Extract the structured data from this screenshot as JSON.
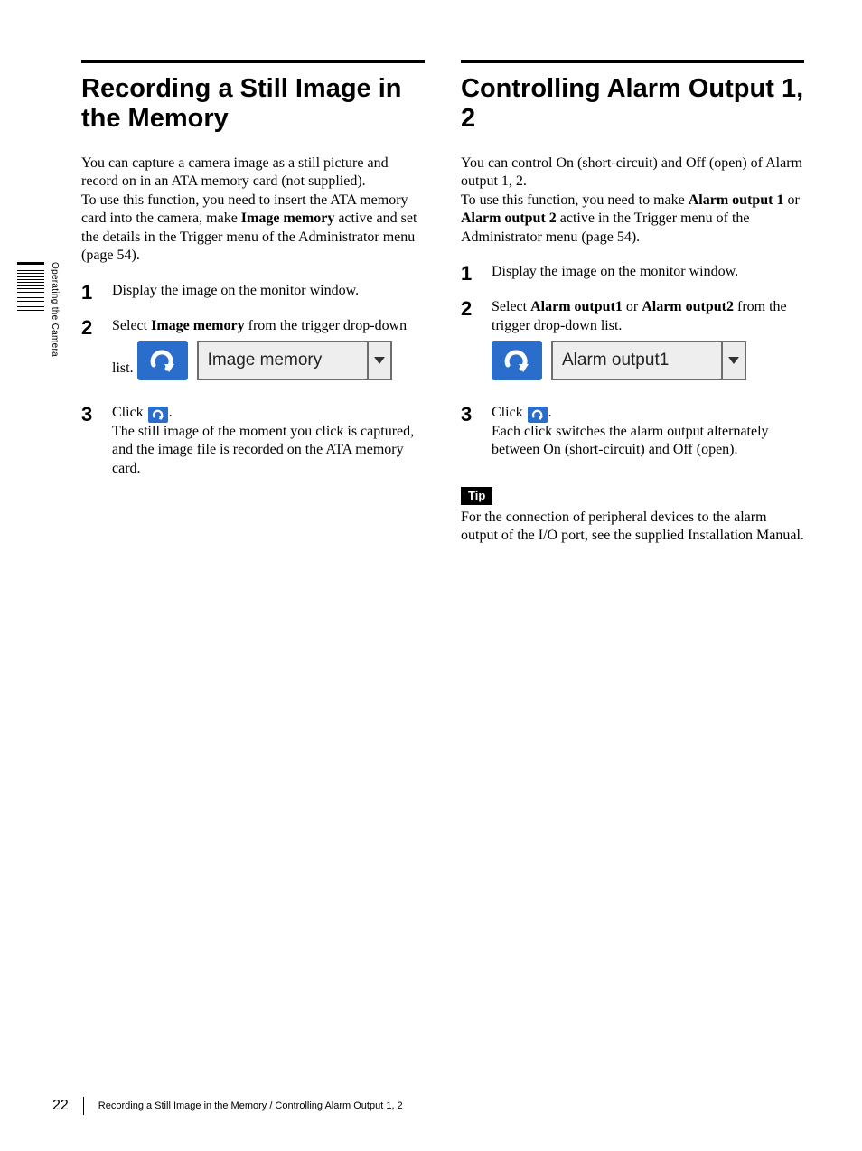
{
  "side_label": "Operating the Camera",
  "left": {
    "heading": "Recording a Still Image in the Memory",
    "intro_pre": "You can capture a camera image as a still picture and record on in an ATA memory card (not supplied).\nTo use this function, you need to insert the ATA memory card into the camera, make ",
    "intro_bold": "Image memory",
    "intro_post": " active and set the details in the Trigger menu of the Administrator menu (page 54).",
    "step1": "Display the image on the monitor window.",
    "step2_pre": "Select ",
    "step2_bold": "Image memory",
    "step2_post": " from the trigger drop-down list.",
    "dropdown_value": "Image memory",
    "step3_click": "Click ",
    "step3_body": "The still image of the moment you click is captured, and the image file is recorded on the ATA memory card."
  },
  "right": {
    "heading": "Controlling Alarm Output 1, 2",
    "intro_pre": "You can control On (short-circuit) and Off (open) of Alarm output 1, 2.\nTo use this function, you need to make ",
    "intro_bold1": "Alarm output 1",
    "intro_mid": " or ",
    "intro_bold2": "Alarm output 2",
    "intro_post": " active in the Trigger menu of the Administrator menu (page 54).",
    "step1": "Display the image on the monitor window.",
    "step2_pre": "Select ",
    "step2_bold1": "Alarm output1",
    "step2_mid": " or ",
    "step2_bold2": "Alarm output2",
    "step2_post": " from the trigger drop-down list.",
    "dropdown_value": "Alarm output1",
    "step3_click": "Click ",
    "step3_body": "Each click switches the alarm output alternately between On (short-circuit) and Off (open).",
    "tip_label": "Tip",
    "tip_text": "For the connection of peripheral devices to the alarm output of the I/O port, see the supplied Installation Manual."
  },
  "footer": {
    "page_number": "22",
    "title": "Recording a Still Image in the Memory / Controlling Alarm Output 1, 2"
  },
  "colors": {
    "button_blue": "#2a6dca",
    "dropdown_border": "#6d6d6d",
    "dropdown_bg": "#eeeeee"
  }
}
